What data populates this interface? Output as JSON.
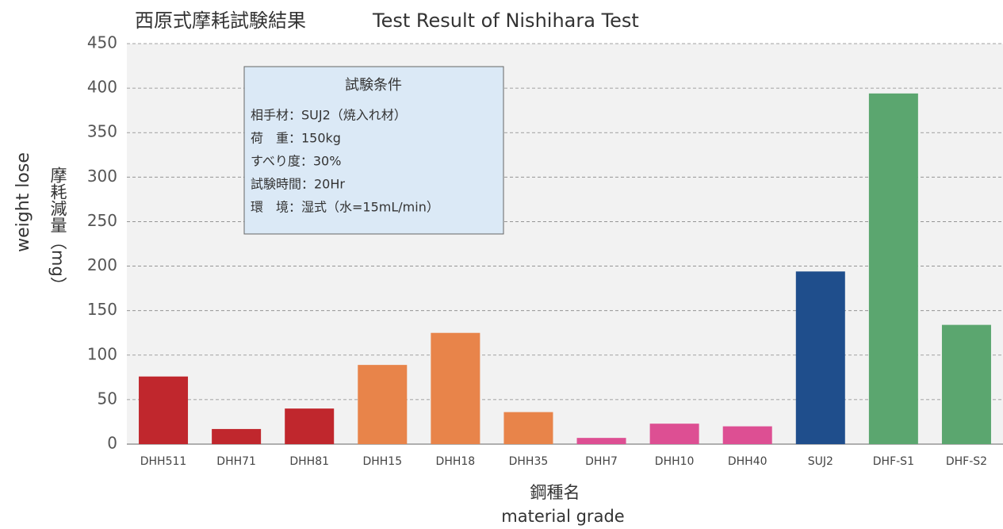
{
  "chart_data": {
    "type": "bar",
    "title": "西原式摩耗試験結果",
    "subtitle": "Test Result of Nishihara Test",
    "y_label": "weight lose",
    "y_label_jp": "摩耗減量（mg）",
    "x_label_jp": "鋼種名",
    "x_label": "material grade",
    "categories": [
      "DHH511",
      "DHH71",
      "DHH81",
      "DHH15",
      "DHH18",
      "DHH35",
      "DHH7",
      "DHH10",
      "DHH40",
      "SUJ2",
      "DHF-S1",
      "DHF-S2"
    ],
    "values": [
      76,
      17,
      40,
      89,
      125,
      36,
      7,
      23,
      20,
      194,
      394,
      134
    ],
    "colors": [
      "#c0272d",
      "#c0272d",
      "#c0272d",
      "#e8844a",
      "#e8844a",
      "#e8844a",
      "#dd4f93",
      "#dd4f93",
      "#dd4f93",
      "#1f4e8c",
      "#5ba66f",
      "#5ba66f"
    ],
    "ylim": [
      0,
      450
    ],
    "yticks": [
      0,
      50,
      100,
      150,
      200,
      250,
      300,
      350,
      400,
      450
    ],
    "grid": true,
    "conditions": {
      "title": "試験条件",
      "lines": [
        "相手材：SUJ2（焼入れ材）",
        "荷　重：150kg",
        "すべり度：30%",
        "試験時間：20Hr",
        "環　境：湿式（水=15mL/min）"
      ]
    }
  }
}
